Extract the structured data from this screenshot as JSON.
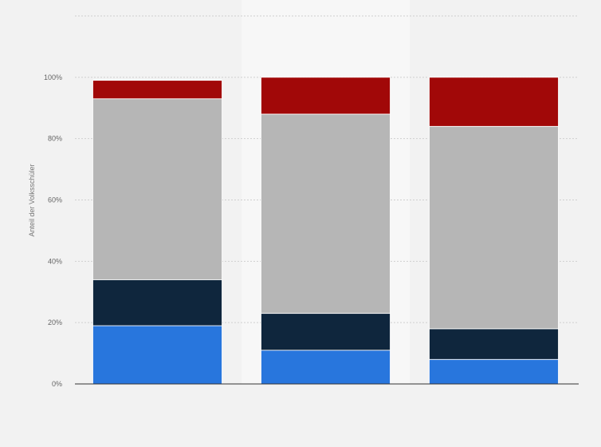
{
  "chart_data": {
    "type": "bar",
    "stacked": true,
    "categories": [
      "",
      "",
      ""
    ],
    "series": [
      {
        "color": "#2876dd",
        "values": [
          19,
          11,
          8
        ]
      },
      {
        "color": "#0f263d",
        "values": [
          15,
          12,
          10
        ]
      },
      {
        "color": "#b6b6b6",
        "values": [
          59,
          65,
          66
        ]
      },
      {
        "color": "#a10808",
        "values": [
          6,
          12,
          16
        ]
      }
    ],
    "ylabel": "Anteil der Volksschüler",
    "ylim": [
      0,
      120
    ],
    "yticks": [
      0,
      20,
      40,
      60,
      80,
      100
    ],
    "ytick_labels": [
      "0%",
      "20%",
      "40%",
      "60%",
      "80%",
      "100%"
    ],
    "grid": true,
    "highlighted_category_index": 1,
    "highlight_color": "#f7f7f7"
  }
}
